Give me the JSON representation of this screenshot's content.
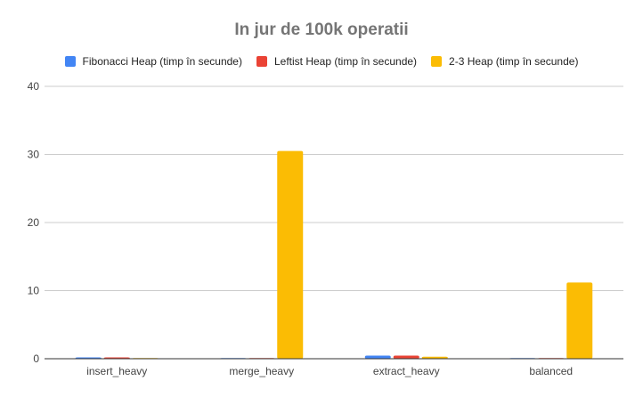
{
  "chart_data": {
    "type": "bar",
    "title": "In jur de 100k operatii",
    "xlabel": "",
    "ylabel": "",
    "categories": [
      "insert_heavy",
      "merge_heavy",
      "extract_heavy",
      "balanced"
    ],
    "series": [
      {
        "name": "Fibonacci Heap (timp în secunde)",
        "color": "#4285f4",
        "values": [
          0.2,
          0.05,
          0.45,
          0.05
        ]
      },
      {
        "name": "Leftist Heap (timp în secunde)",
        "color": "#ea4335",
        "values": [
          0.2,
          0.05,
          0.45,
          0.05
        ]
      },
      {
        "name": "2-3 Heap (timp în secunde)",
        "color": "#fbbc04",
        "values": [
          0.1,
          30.5,
          0.3,
          11.2
        ]
      }
    ],
    "ylim": [
      0,
      40
    ],
    "yticks": [
      0,
      10,
      20,
      30,
      40
    ],
    "grid": true,
    "legend_position": "top"
  }
}
